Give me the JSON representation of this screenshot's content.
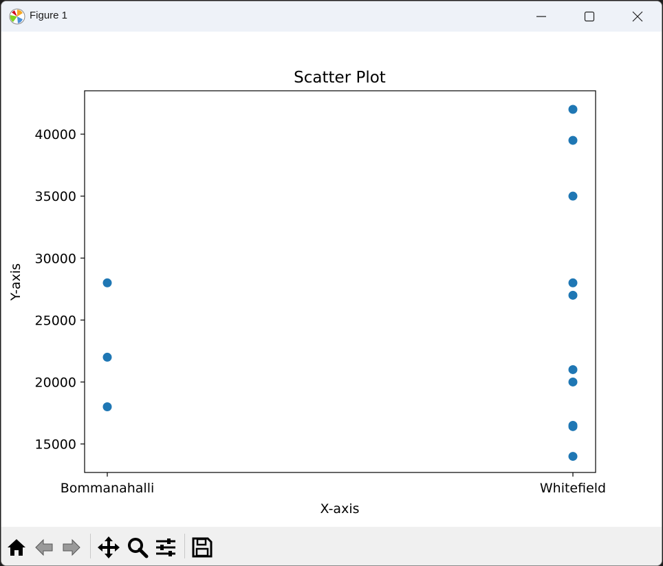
{
  "window": {
    "title": "Figure 1"
  },
  "toolbar": {
    "icons": [
      "home-icon",
      "back-arrow-icon",
      "forward-arrow-icon",
      "pan-icon",
      "zoom-icon",
      "configure-subplots-icon",
      "save-icon"
    ]
  },
  "chart_data": {
    "type": "scatter",
    "title": "Scatter Plot",
    "xlabel": "X-axis",
    "ylabel": "Y-axis",
    "categories": [
      "Bommanahalli",
      "Whitefield"
    ],
    "points": [
      {
        "x": "Bommanahalli",
        "y": 28000
      },
      {
        "x": "Bommanahalli",
        "y": 22000
      },
      {
        "x": "Bommanahalli",
        "y": 18000
      },
      {
        "x": "Whitefield",
        "y": 42000
      },
      {
        "x": "Whitefield",
        "y": 39500
      },
      {
        "x": "Whitefield",
        "y": 35000
      },
      {
        "x": "Whitefield",
        "y": 28000
      },
      {
        "x": "Whitefield",
        "y": 27000
      },
      {
        "x": "Whitefield",
        "y": 21000
      },
      {
        "x": "Whitefield",
        "y": 20000
      },
      {
        "x": "Whitefield",
        "y": 16500
      },
      {
        "x": "Whitefield",
        "y": 16400
      },
      {
        "x": "Whitefield",
        "y": 14000
      }
    ],
    "yticks": [
      15000,
      20000,
      25000,
      30000,
      35000,
      40000
    ],
    "ylim": [
      12700,
      43500
    ],
    "marker_color": "#1f77b4",
    "grid": false
  }
}
